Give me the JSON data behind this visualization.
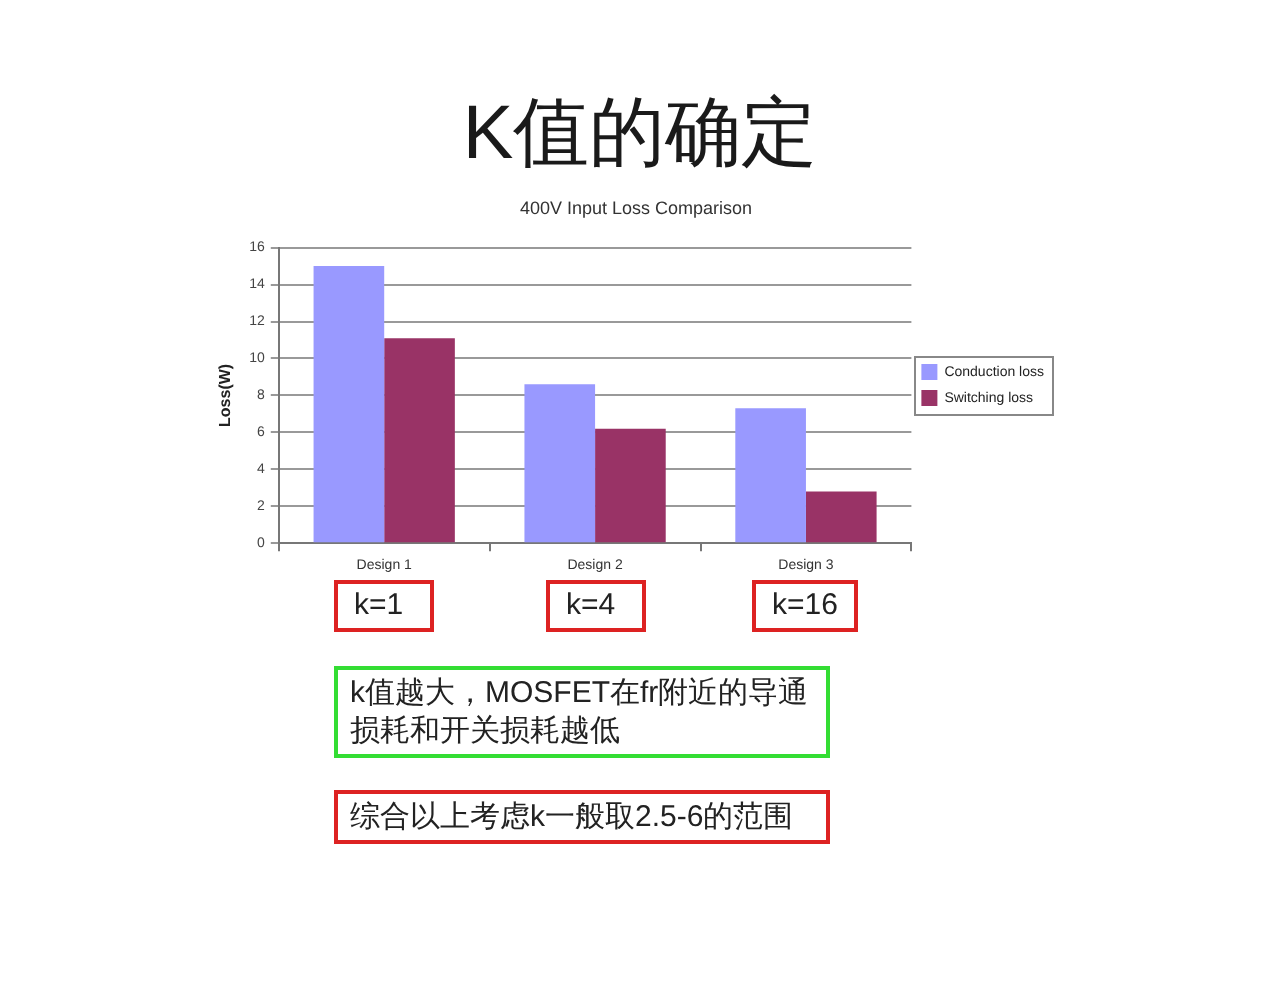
{
  "chart_data": {
    "type": "bar",
    "title": "K值的确定",
    "subtitle": "400V Input Loss Comparison",
    "ylabel": "Loss(W)",
    "categories": [
      "Design 1",
      "Design 2",
      "Design 3"
    ],
    "series": [
      {
        "name": "Conduction loss",
        "color": "#9999ff",
        "values": [
          15,
          8.6,
          7.3
        ]
      },
      {
        "name": "Switching loss",
        "color": "#993366",
        "values": [
          11.1,
          6.2,
          2.8
        ]
      }
    ],
    "ylim": [
      0,
      16
    ],
    "yticks": [
      0,
      2,
      4,
      6,
      8,
      10,
      12,
      14,
      16
    ],
    "grid": "y",
    "legend": "right",
    "annotations": [
      "k=1",
      "k=4",
      "k=16",
      "k值越大，MOSFET在fr附近的导通损耗和开关损耗越低",
      "综合以上考虑k一般取2.5-6的范围"
    ]
  }
}
